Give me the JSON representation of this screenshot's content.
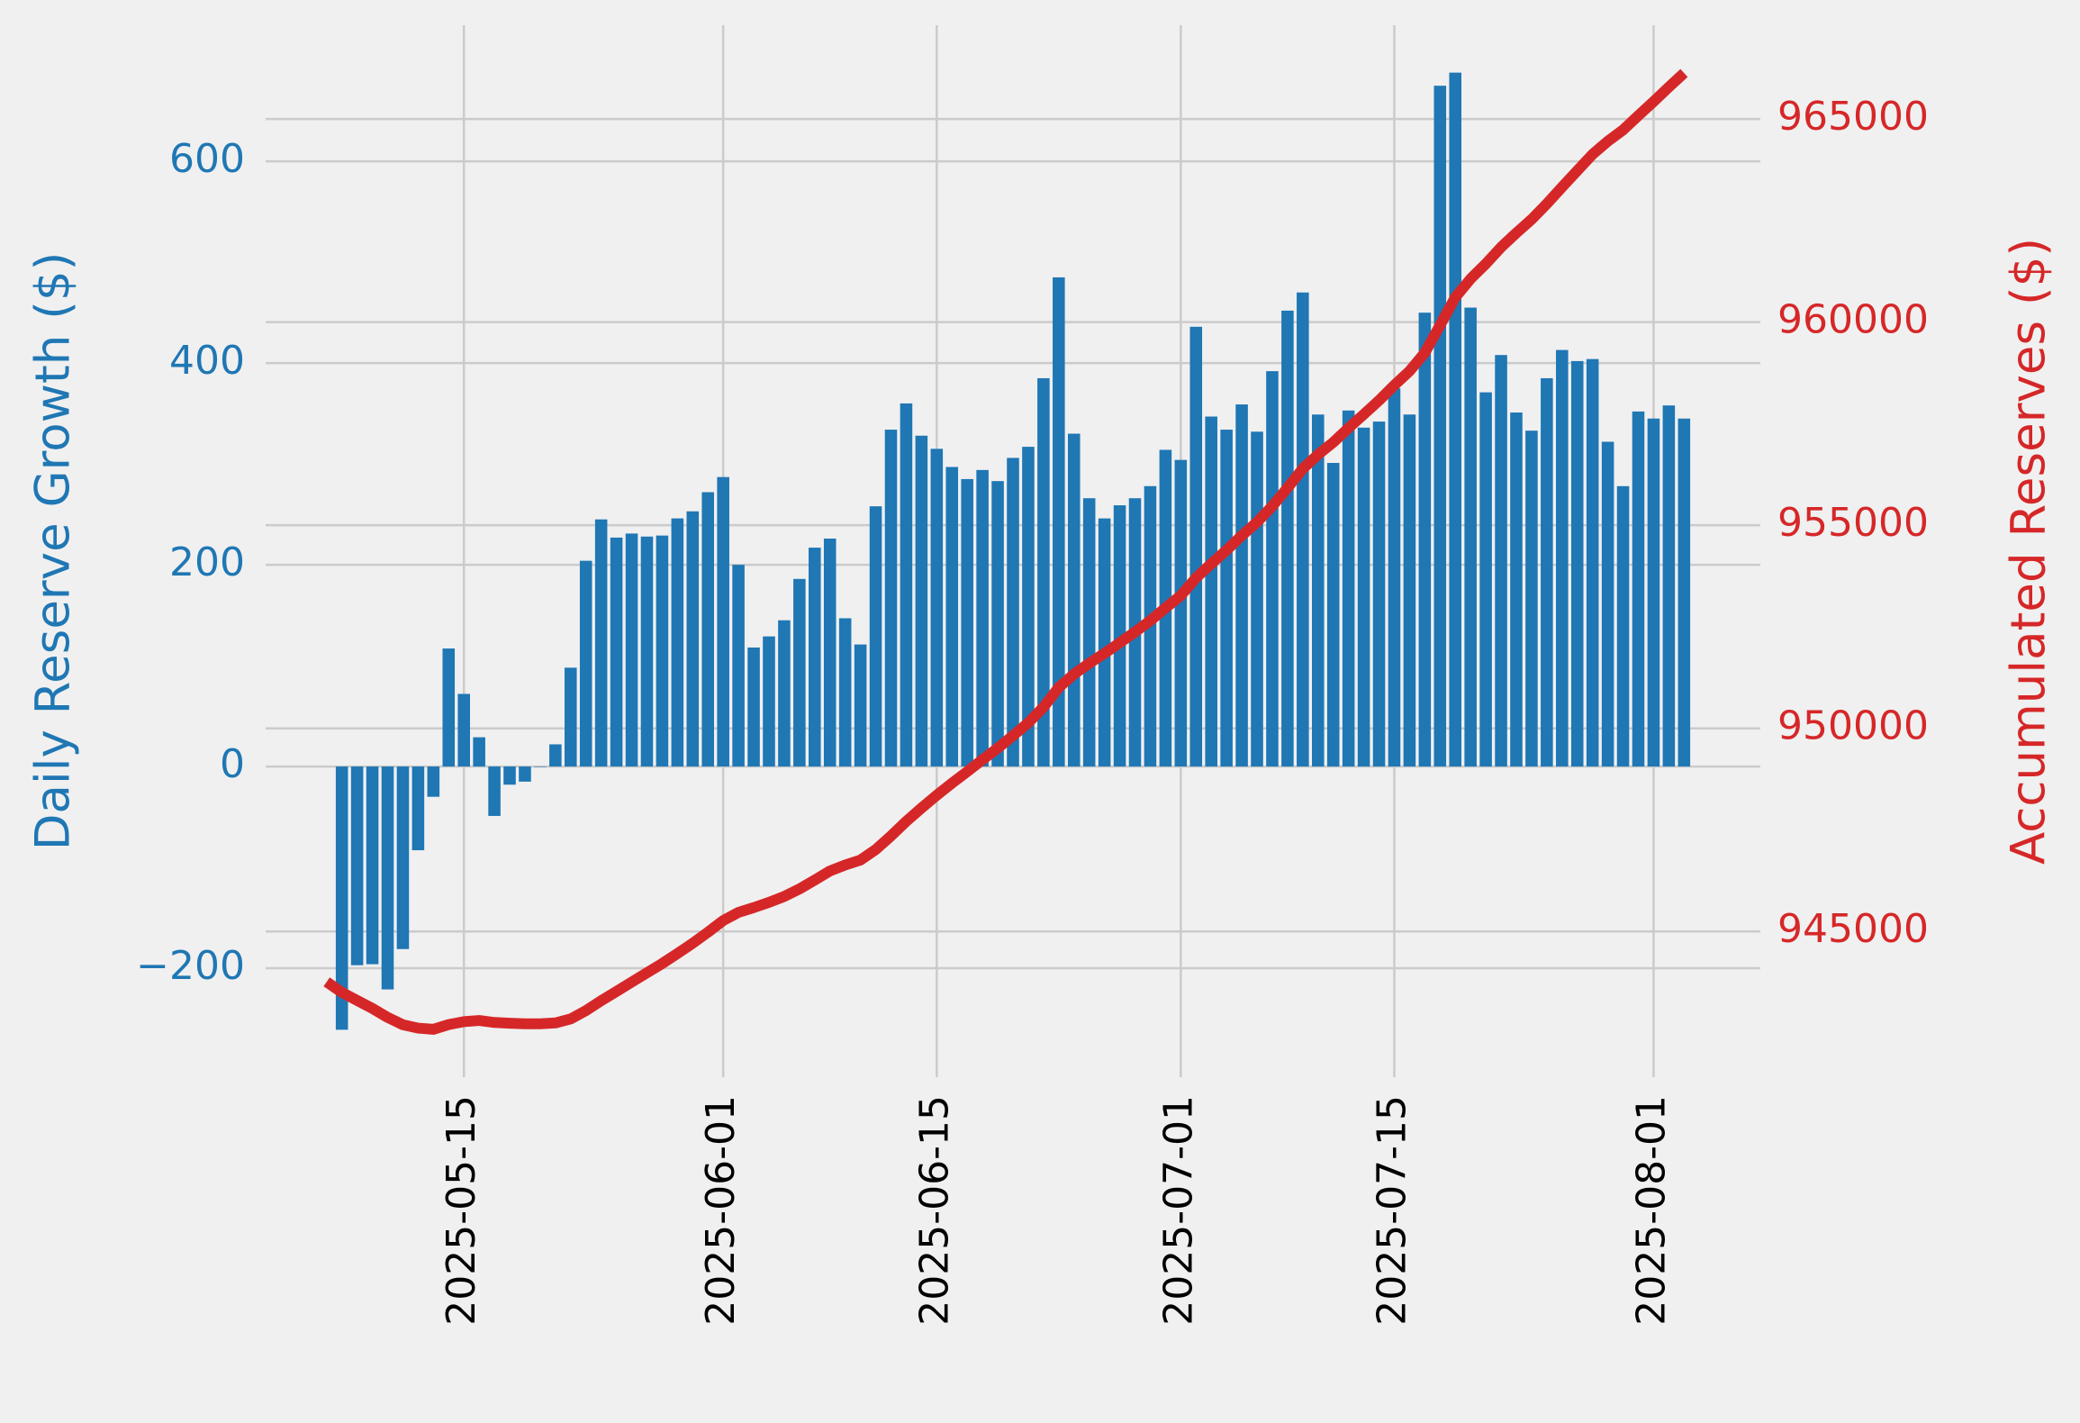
{
  "chart_data": {
    "type": "bar",
    "x": [
      "2025-05-06",
      "2025-05-07",
      "2025-05-08",
      "2025-05-09",
      "2025-05-10",
      "2025-05-11",
      "2025-05-12",
      "2025-05-13",
      "2025-05-14",
      "2025-05-15",
      "2025-05-16",
      "2025-05-17",
      "2025-05-18",
      "2025-05-19",
      "2025-05-20",
      "2025-05-21",
      "2025-05-22",
      "2025-05-23",
      "2025-05-24",
      "2025-05-25",
      "2025-05-26",
      "2025-05-27",
      "2025-05-28",
      "2025-05-29",
      "2025-05-30",
      "2025-05-31",
      "2025-06-01",
      "2025-06-02",
      "2025-06-03",
      "2025-06-04",
      "2025-06-05",
      "2025-06-06",
      "2025-06-07",
      "2025-06-08",
      "2025-06-09",
      "2025-06-10",
      "2025-06-11",
      "2025-06-12",
      "2025-06-13",
      "2025-06-14",
      "2025-06-15",
      "2025-06-16",
      "2025-06-17",
      "2025-06-18",
      "2025-06-19",
      "2025-06-20",
      "2025-06-21",
      "2025-06-22",
      "2025-06-23",
      "2025-06-24",
      "2025-06-25",
      "2025-06-26",
      "2025-06-27",
      "2025-06-28",
      "2025-06-29",
      "2025-06-30",
      "2025-07-01",
      "2025-07-02",
      "2025-07-03",
      "2025-07-04",
      "2025-07-05",
      "2025-07-06",
      "2025-07-07",
      "2025-07-08",
      "2025-07-09",
      "2025-07-10",
      "2025-07-11",
      "2025-07-12",
      "2025-07-13",
      "2025-07-14",
      "2025-07-15",
      "2025-07-16",
      "2025-07-17",
      "2025-07-18",
      "2025-07-19",
      "2025-07-20",
      "2025-07-21",
      "2025-07-22",
      "2025-07-23",
      "2025-07-24",
      "2025-07-25",
      "2025-07-26",
      "2025-07-27",
      "2025-07-28",
      "2025-07-29",
      "2025-07-30",
      "2025-07-31",
      "2025-08-01",
      "2025-08-02",
      "2025-08-03"
    ],
    "series": [
      {
        "name": "Daily Reserve Growth ($)",
        "type": "bar",
        "color": "#1f77b4",
        "axis": "y",
        "values": [
          null,
          -261,
          -197,
          -196,
          -221,
          -181,
          -83,
          -30,
          117,
          72,
          29,
          -49,
          -18,
          -15,
          0,
          22,
          98,
          204,
          245,
          227,
          231,
          228,
          229,
          246,
          253,
          272,
          287,
          200,
          118,
          129,
          145,
          186,
          217,
          226,
          147,
          121,
          258,
          334,
          360,
          328,
          315,
          297,
          285,
          294,
          283,
          306,
          317,
          385,
          485,
          330,
          266,
          246,
          259,
          266,
          278,
          314,
          304,
          436,
          347,
          334,
          359,
          332,
          392,
          452,
          470,
          349,
          301,
          353,
          336,
          342,
          375,
          349,
          450,
          675,
          688,
          455,
          371,
          408,
          351,
          333,
          385,
          413,
          402,
          404,
          322,
          278,
          352,
          345,
          358,
          345
        ]
      },
      {
        "name": "Accumulated Reserves ($)",
        "type": "line",
        "color": "#d62728",
        "axis": "y2",
        "values": [
          943760,
          943499,
          943302,
          943106,
          942885,
          942704,
          942621,
          942591,
          942708,
          942780,
          942809,
          942760,
          942742,
          942727,
          942727,
          942749,
          942847,
          943051,
          943296,
          943523,
          943754,
          943982,
          944211,
          944457,
          944710,
          944982,
          945269,
          945469,
          945587,
          945716,
          945861,
          946047,
          946264,
          946490,
          946637,
          946758,
          947016,
          947350,
          947710,
          948038,
          948353,
          948650,
          948935,
          949229,
          949512,
          949818,
          950135,
          950520,
          951005,
          951335,
          951601,
          951847,
          952106,
          952372,
          952650,
          952964,
          953268,
          953704,
          954051,
          954385,
          954744,
          955076,
          955468,
          955920,
          956390,
          956739,
          957040,
          957393,
          957729,
          958071,
          958446,
          958795,
          959245,
          959920,
          960608,
          961063,
          961434,
          961842,
          962193,
          962526,
          962911,
          963324,
          963726,
          964130,
          964452,
          964730,
          965082,
          965427,
          965785,
          966130
        ]
      }
    ],
    "xlim": [
      "2025-05-02",
      "2025-08-08"
    ],
    "xticks": [
      "2025-05-15",
      "2025-06-01",
      "2025-06-15",
      "2025-07-01",
      "2025-07-15",
      "2025-08-01"
    ],
    "ylim": [
      -308,
      735
    ],
    "yticks": [
      {
        "value": -200,
        "label": "−200"
      },
      0,
      200,
      400,
      600
    ],
    "y2lim": [
      941414,
      967307
    ],
    "y2ticks": [
      945000,
      950000,
      955000,
      960000,
      965000
    ],
    "grid": true
  }
}
